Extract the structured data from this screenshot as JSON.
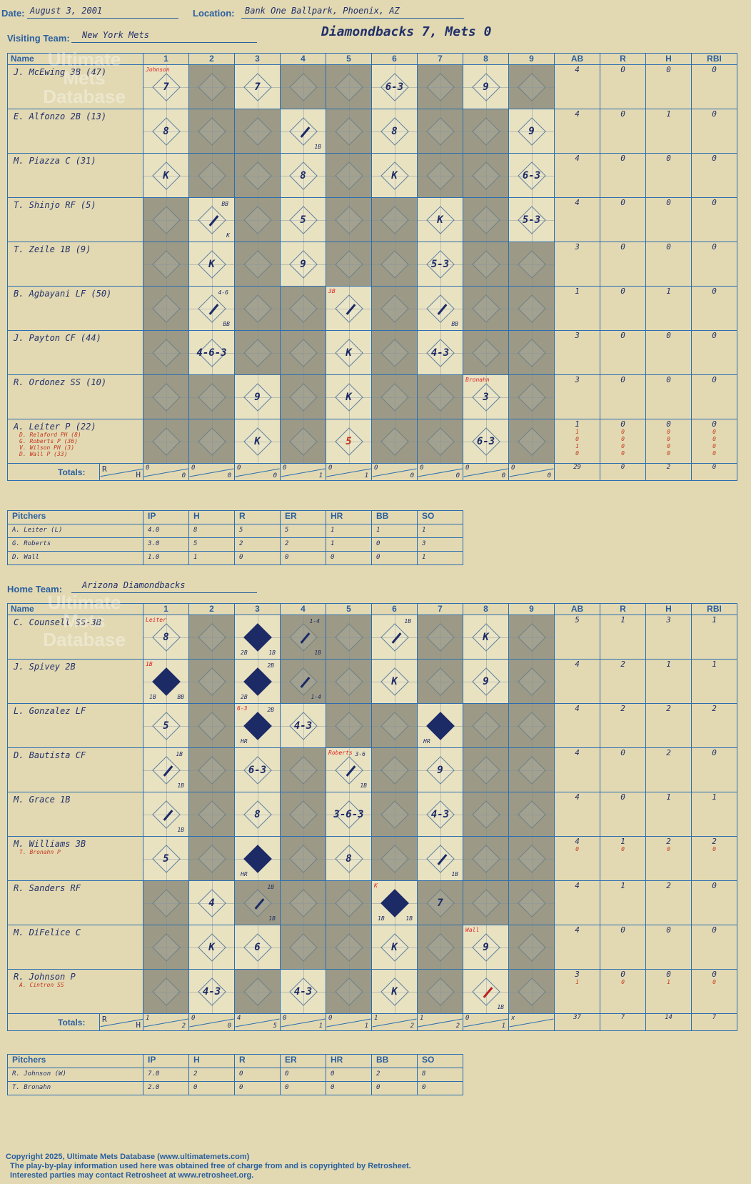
{
  "game": {
    "date_label": "Date:",
    "date": "August 3, 2001",
    "location_label": "Location:",
    "location": "Bank One Ballpark, Phoenix, AZ",
    "visiting_label": "Visiting Team:",
    "visiting_team": "New York Mets",
    "home_label": "Home Team:",
    "home_team": "Arizona Diamondbacks",
    "result": "Diamondbacks 7, Mets 0"
  },
  "columns": {
    "name": "Name",
    "innings": [
      "1",
      "2",
      "3",
      "4",
      "5",
      "6",
      "7",
      "8",
      "9"
    ],
    "stats": [
      "AB",
      "R",
      "H",
      "RBI"
    ],
    "totals": "Totals:",
    "r": "R",
    "h": "H"
  },
  "watermark": "Ultimate Mets Database",
  "visitor_lineup": [
    {
      "name": "J. McEwing 3B (47)",
      "shade": [
        0,
        1,
        0,
        1,
        1,
        0,
        1,
        0,
        1
      ],
      "plays": {
        "1": {
          "text": "7",
          "note": "Johnson"
        },
        "3": {
          "text": "7"
        },
        "6": {
          "text": "6-3"
        },
        "8": {
          "text": "9"
        }
      },
      "stats": [
        "4",
        "0",
        "0",
        "0"
      ]
    },
    {
      "name": "E. Alfonzo 2B (13)",
      "shade": [
        0,
        1,
        1,
        0,
        1,
        0,
        1,
        1,
        0
      ],
      "plays": {
        "1": {
          "text": "8"
        },
        "4": {
          "text": "",
          "br": "1B",
          "hit": true
        },
        "6": {
          "text": "8"
        },
        "9": {
          "text": "9"
        }
      },
      "stats": [
        "4",
        "0",
        "1",
        "0"
      ]
    },
    {
      "name": "M. Piazza C (31)",
      "shade": [
        0,
        1,
        1,
        0,
        1,
        0,
        1,
        1,
        0
      ],
      "plays": {
        "1": {
          "text": "K"
        },
        "4": {
          "text": "8"
        },
        "6": {
          "text": "K"
        },
        "9": {
          "text": "6-3"
        }
      },
      "stats": [
        "4",
        "0",
        "0",
        "0"
      ]
    },
    {
      "name": "T. Shinjo RF (5)",
      "shade": [
        1,
        0,
        1,
        0,
        1,
        1,
        0,
        1,
        0
      ],
      "plays": {
        "2": {
          "text": "",
          "tr": "BB",
          "br": "K",
          "hit": true
        },
        "4": {
          "text": "5"
        },
        "7": {
          "text": "K"
        },
        "9": {
          "text": "5-3"
        }
      },
      "stats": [
        "4",
        "0",
        "0",
        "0"
      ]
    },
    {
      "name": "T. Zeile 1B (9)",
      "shade": [
        1,
        0,
        1,
        0,
        1,
        1,
        0,
        1,
        1
      ],
      "plays": {
        "2": {
          "text": "K"
        },
        "4": {
          "text": "9"
        },
        "7": {
          "text": "5-3"
        }
      },
      "stats": [
        "3",
        "0",
        "0",
        "0"
      ]
    },
    {
      "name": "B. Agbayani LF (50)",
      "shade": [
        1,
        0,
        1,
        1,
        0,
        1,
        0,
        1,
        1
      ],
      "plays": {
        "2": {
          "text": "",
          "tr": "4-6",
          "br": "BB",
          "hit": true
        },
        "5": {
          "text": "",
          "tl": "3B",
          "hit": true
        },
        "7": {
          "text": "",
          "br": "BB",
          "hit": true
        }
      },
      "stats": [
        "1",
        "0",
        "1",
        "0"
      ]
    },
    {
      "name": "J. Payton CF (44)",
      "shade": [
        1,
        0,
        1,
        1,
        0,
        1,
        0,
        1,
        1
      ],
      "plays": {
        "2": {
          "text": "4-6-3"
        },
        "5": {
          "text": "K"
        },
        "7": {
          "text": "4-3"
        }
      },
      "stats": [
        "3",
        "0",
        "0",
        "0"
      ]
    },
    {
      "name": "R. Ordonez SS (10)",
      "shade": [
        1,
        1,
        0,
        1,
        0,
        1,
        1,
        0,
        1
      ],
      "plays": {
        "3": {
          "text": "9"
        },
        "5": {
          "text": "K"
        },
        "8": {
          "text": "3",
          "note": "Bronahn"
        }
      },
      "stats": [
        "3",
        "0",
        "0",
        "0"
      ]
    },
    {
      "name": "A. Leiter P (22)",
      "shade": [
        1,
        1,
        0,
        1,
        0,
        1,
        1,
        0,
        1
      ],
      "subs": [
        "D. Relaford PH (8)",
        "G. Roberts P (36)",
        "V. Wilson PH (3)",
        "D. Wall P (33)"
      ],
      "plays": {
        "3": {
          "text": "K"
        },
        "5": {
          "text": "5",
          "red": true
        },
        "8": {
          "text": "6-3"
        }
      },
      "stats": [
        "1",
        "0",
        "0",
        "0"
      ],
      "sub_stats": [
        [
          "1",
          "0",
          "0",
          "0"
        ],
        [
          "0",
          "0",
          "0",
          "0"
        ],
        [
          "1",
          "0",
          "0",
          "0"
        ],
        [
          "0",
          "0",
          "0",
          "0"
        ]
      ]
    }
  ],
  "visitor_totals": {
    "innings": [
      [
        "0",
        "0"
      ],
      [
        "0",
        "0"
      ],
      [
        "0",
        "0"
      ],
      [
        "0",
        "1"
      ],
      [
        "0",
        "1"
      ],
      [
        "0",
        "0"
      ],
      [
        "0",
        "0"
      ],
      [
        "0",
        "0"
      ],
      [
        "0",
        "0"
      ]
    ],
    "stats": [
      "29",
      "0",
      "2",
      "0"
    ]
  },
  "visitor_pitchers": {
    "label": "Pitchers",
    "headers": [
      "IP",
      "H",
      "R",
      "ER",
      "HR",
      "BB",
      "SO"
    ],
    "rows": [
      {
        "name": "A. Leiter (L)",
        "vals": [
          "4.0",
          "8",
          "5",
          "5",
          "1",
          "1",
          "1"
        ]
      },
      {
        "name": "G. Roberts",
        "vals": [
          "3.0",
          "5",
          "2",
          "2",
          "1",
          "0",
          "3"
        ]
      },
      {
        "name": "D. Wall",
        "vals": [
          "1.0",
          "1",
          "0",
          "0",
          "0",
          "0",
          "1"
        ]
      }
    ]
  },
  "home_lineup": [
    {
      "name": "C. Counsell SS-3B",
      "shade": [
        0,
        1,
        0,
        1,
        1,
        0,
        1,
        0,
        1
      ],
      "plays": {
        "1": {
          "text": "8",
          "note": "Leiter"
        },
        "3": {
          "text": "",
          "bl": "2B",
          "br": "1B",
          "scored": true
        },
        "4": {
          "text": "",
          "tr": "1-4",
          "br": "1B",
          "hit": true
        },
        "6": {
          "text": "",
          "tr": "1B",
          "hit": true
        },
        "8": {
          "text": "K"
        }
      },
      "stats": [
        "5",
        "1",
        "3",
        "1"
      ]
    },
    {
      "name": "J. Spivey 2B",
      "shade": [
        0,
        1,
        0,
        1,
        1,
        0,
        1,
        0,
        1
      ],
      "plays": {
        "1": {
          "text": "",
          "tl": "1B",
          "bl": "1B",
          "br": "BB",
          "scored": true
        },
        "3": {
          "text": "",
          "tr": "2B",
          "bl": "2B",
          "scored": true
        },
        "4": {
          "text": "",
          "br": "1-4",
          "hit": true
        },
        "6": {
          "text": "K"
        },
        "8": {
          "text": "9"
        }
      },
      "stats": [
        "4",
        "2",
        "1",
        "1"
      ]
    },
    {
      "name": "L. Gonzalez LF",
      "shade": [
        0,
        1,
        0,
        0,
        1,
        1,
        0,
        1,
        1
      ],
      "plays": {
        "1": {
          "text": "5"
        },
        "3": {
          "text": "",
          "tl": "6-3",
          "tr": "2B",
          "bl": "HR",
          "scored": true
        },
        "4": {
          "text": "4-3"
        },
        "7": {
          "text": "",
          "bl": "HR",
          "scored": true
        }
      },
      "stats": [
        "4",
        "2",
        "2",
        "2"
      ]
    },
    {
      "name": "D. Bautista CF",
      "shade": [
        0,
        1,
        0,
        1,
        0,
        1,
        0,
        1,
        1
      ],
      "plays": {
        "1": {
          "text": "",
          "tr": "1B",
          "br": "1B",
          "hit": true
        },
        "3": {
          "text": "6-3"
        },
        "5": {
          "text": "",
          "note": "Roberts",
          "tr": "3-6",
          "br": "1B",
          "hit": true
        },
        "7": {
          "text": "9"
        }
      },
      "stats": [
        "4",
        "0",
        "2",
        "0"
      ]
    },
    {
      "name": "M. Grace 1B",
      "shade": [
        0,
        1,
        0,
        1,
        0,
        1,
        0,
        1,
        1
      ],
      "plays": {
        "1": {
          "text": "",
          "br": "1B",
          "hit": true
        },
        "3": {
          "text": "8"
        },
        "5": {
          "text": "3-6-3"
        },
        "7": {
          "text": "4-3"
        }
      },
      "stats": [
        "4",
        "0",
        "1",
        "1"
      ]
    },
    {
      "name": "M. Williams 3B",
      "shade": [
        0,
        1,
        0,
        1,
        0,
        1,
        0,
        1,
        1
      ],
      "subs": [
        "T. Bronahn P"
      ],
      "plays": {
        "1": {
          "text": "5"
        },
        "3": {
          "text": "",
          "bl": "HR",
          "scored": true
        },
        "5": {
          "text": "8"
        },
        "7": {
          "text": "",
          "br": "1B",
          "hit": true
        }
      },
      "stats": [
        "4",
        "1",
        "2",
        "2"
      ],
      "sub_stats": [
        [
          "0",
          "0",
          "0",
          "0"
        ]
      ]
    },
    {
      "name": "R. Sanders RF",
      "shade": [
        1,
        0,
        1,
        1,
        1,
        0,
        1,
        1,
        1
      ],
      "plays": {
        "2": {
          "text": "4"
        },
        "3": {
          "text": "",
          "tr": "1B",
          "br": "1B",
          "hit": true
        },
        "6": {
          "text": "",
          "tl": "K",
          "bl": "1B",
          "br": "1B",
          "scored": true
        },
        "7": {
          "text": "7"
        }
      },
      "stats": [
        "4",
        "1",
        "2",
        "0"
      ]
    },
    {
      "name": "M. DiFelice C",
      "shade": [
        1,
        0,
        0,
        1,
        1,
        0,
        1,
        0,
        1
      ],
      "plays": {
        "2": {
          "text": "K"
        },
        "3": {
          "text": "6"
        },
        "6": {
          "text": "K"
        },
        "8": {
          "text": "9",
          "note": "Wall"
        }
      },
      "stats": [
        "4",
        "0",
        "0",
        "0"
      ]
    },
    {
      "name": "R. Johnson P",
      "shade": [
        1,
        0,
        1,
        0,
        1,
        0,
        1,
        0,
        1
      ],
      "subs": [
        "A. Cintron SS"
      ],
      "plays": {
        "2": {
          "text": "4-3"
        },
        "4": {
          "text": "4-3"
        },
        "6": {
          "text": "K"
        },
        "8": {
          "text": "",
          "br": "1B",
          "hit": true,
          "red": true
        }
      },
      "stats": [
        "3",
        "0",
        "0",
        "0"
      ],
      "sub_stats": [
        [
          "1",
          "0",
          "1",
          "0"
        ]
      ]
    }
  ],
  "home_totals": {
    "innings": [
      [
        "1",
        "2"
      ],
      [
        "0",
        "0"
      ],
      [
        "4",
        "5"
      ],
      [
        "0",
        "1"
      ],
      [
        "0",
        "1"
      ],
      [
        "1",
        "2"
      ],
      [
        "1",
        "2"
      ],
      [
        "0",
        "1"
      ],
      [
        "x",
        ""
      ]
    ],
    "stats": [
      "37",
      "7",
      "14",
      "7"
    ]
  },
  "home_pitchers": {
    "label": "Pitchers",
    "headers": [
      "IP",
      "H",
      "R",
      "ER",
      "HR",
      "BB",
      "SO"
    ],
    "rows": [
      {
        "name": "R. Johnson (W)",
        "vals": [
          "7.0",
          "2",
          "0",
          "0",
          "0",
          "2",
          "8"
        ]
      },
      {
        "name": "T. Bronahn",
        "vals": [
          "2.0",
          "0",
          "0",
          "0",
          "0",
          "0",
          "0"
        ]
      }
    ]
  },
  "footer": {
    "line1": "Copyright 2025, Ultimate Mets Database (www.ultimatemets.com)",
    "line2": "The play-by-play information used here was obtained free of charge from and is copyrighted by Retrosheet.",
    "line3": "Interested parties may contact Retrosheet at www.retrosheet.org."
  },
  "colors": {
    "ink": "#22306a",
    "grid": "#2a6db0",
    "shade": "#9c9a86",
    "paper": "#e2d9b3",
    "note": "#d22"
  }
}
